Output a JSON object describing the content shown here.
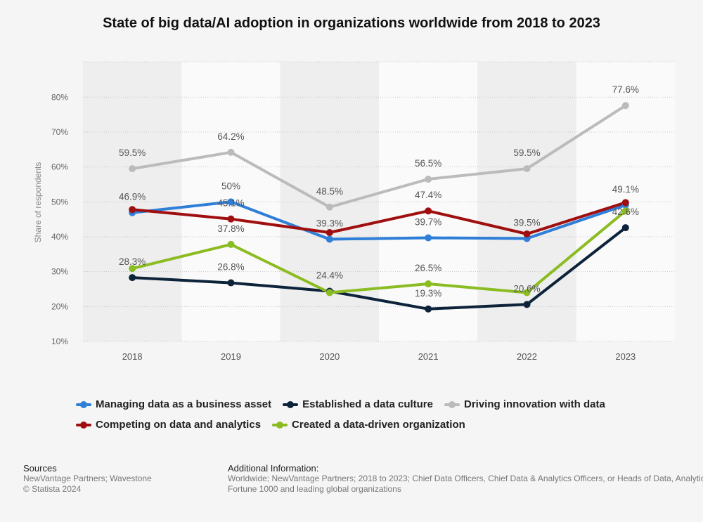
{
  "chart_data": {
    "type": "line",
    "title": "State of big data/AI adoption in organizations worldwide from 2018 to 2023",
    "ylabel": "Share of respondents",
    "xlabel": "",
    "y_unit": "%",
    "ylim": [
      10,
      80
    ],
    "yticks": [
      10,
      20,
      30,
      40,
      50,
      60,
      70,
      80
    ],
    "grid": true,
    "legend_position": "bottom",
    "categories": [
      "2018",
      "2019",
      "2020",
      "2021",
      "2022",
      "2023"
    ],
    "series": [
      {
        "name": "Managing data as a business asset",
        "color": "#2f7ed8",
        "values": [
          46.9,
          50,
          39.3,
          39.7,
          39.5,
          49.1
        ]
      },
      {
        "name": "Established a data culture",
        "color": "#0d233a",
        "values": [
          28.3,
          26.8,
          24.4,
          19.3,
          20.6,
          42.6
        ]
      },
      {
        "name": "Driving innovation with data",
        "color": "#bbbbbb",
        "values": [
          59.5,
          64.2,
          48.5,
          56.5,
          59.5,
          77.6
        ]
      },
      {
        "name": "Competing on data and analytics",
        "color": "#a00f0f",
        "values": [
          47.8,
          45.1,
          41.2,
          47.4,
          40.8,
          49.8
        ]
      },
      {
        "name": "Created a data-driven organization",
        "color": "#8bbc21",
        "values": [
          30.9,
          37.8,
          24.0,
          26.5,
          24.0,
          47.4
        ]
      }
    ],
    "data_labels": [
      {
        "category": "2018",
        "value": 59.5,
        "text": "59.5%"
      },
      {
        "category": "2018",
        "value": 46.9,
        "text": "46.9%"
      },
      {
        "category": "2018",
        "value": 28.3,
        "text": "28.3%"
      },
      {
        "category": "2019",
        "value": 64.2,
        "text": "64.2%"
      },
      {
        "category": "2019",
        "value": 50,
        "text": "50%"
      },
      {
        "category": "2019",
        "value": 45.1,
        "text": "45.1%"
      },
      {
        "category": "2019",
        "value": 37.8,
        "text": "37.8%"
      },
      {
        "category": "2019",
        "value": 26.8,
        "text": "26.8%"
      },
      {
        "category": "2020",
        "value": 48.5,
        "text": "48.5%"
      },
      {
        "category": "2020",
        "value": 39.3,
        "text": "39.3%"
      },
      {
        "category": "2020",
        "value": 24.4,
        "text": "24.4%"
      },
      {
        "category": "2021",
        "value": 56.5,
        "text": "56.5%"
      },
      {
        "category": "2021",
        "value": 47.4,
        "text": "47.4%"
      },
      {
        "category": "2021",
        "value": 39.7,
        "text": "39.7%"
      },
      {
        "category": "2021",
        "value": 26.5,
        "text": "26.5%"
      },
      {
        "category": "2021",
        "value": 19.3,
        "text": "19.3%"
      },
      {
        "category": "2022",
        "value": 59.5,
        "text": "59.5%"
      },
      {
        "category": "2022",
        "value": 39.5,
        "text": "39.5%"
      },
      {
        "category": "2022",
        "value": 20.6,
        "text": "20.6%"
      },
      {
        "category": "2023",
        "value": 77.6,
        "text": "77.6%"
      },
      {
        "category": "2023",
        "value": 49.1,
        "text": "49.1%"
      },
      {
        "category": "2023",
        "value": 42.6,
        "text": "42.6%"
      }
    ]
  },
  "footer": {
    "sources_heading": "Sources",
    "sources_line1": "NewVantage Partners; Wavestone",
    "sources_line2": "© Statista 2024",
    "additional_heading": "Additional Information:",
    "additional_line1": "Worldwide; NewVantage Partners; 2018 to 2023; Chief Data Officers, Chief Data & Analytics Officers, or Heads of Data, Analytics",
    "additional_line2": "Fortune 1000 and leading global organizations"
  }
}
